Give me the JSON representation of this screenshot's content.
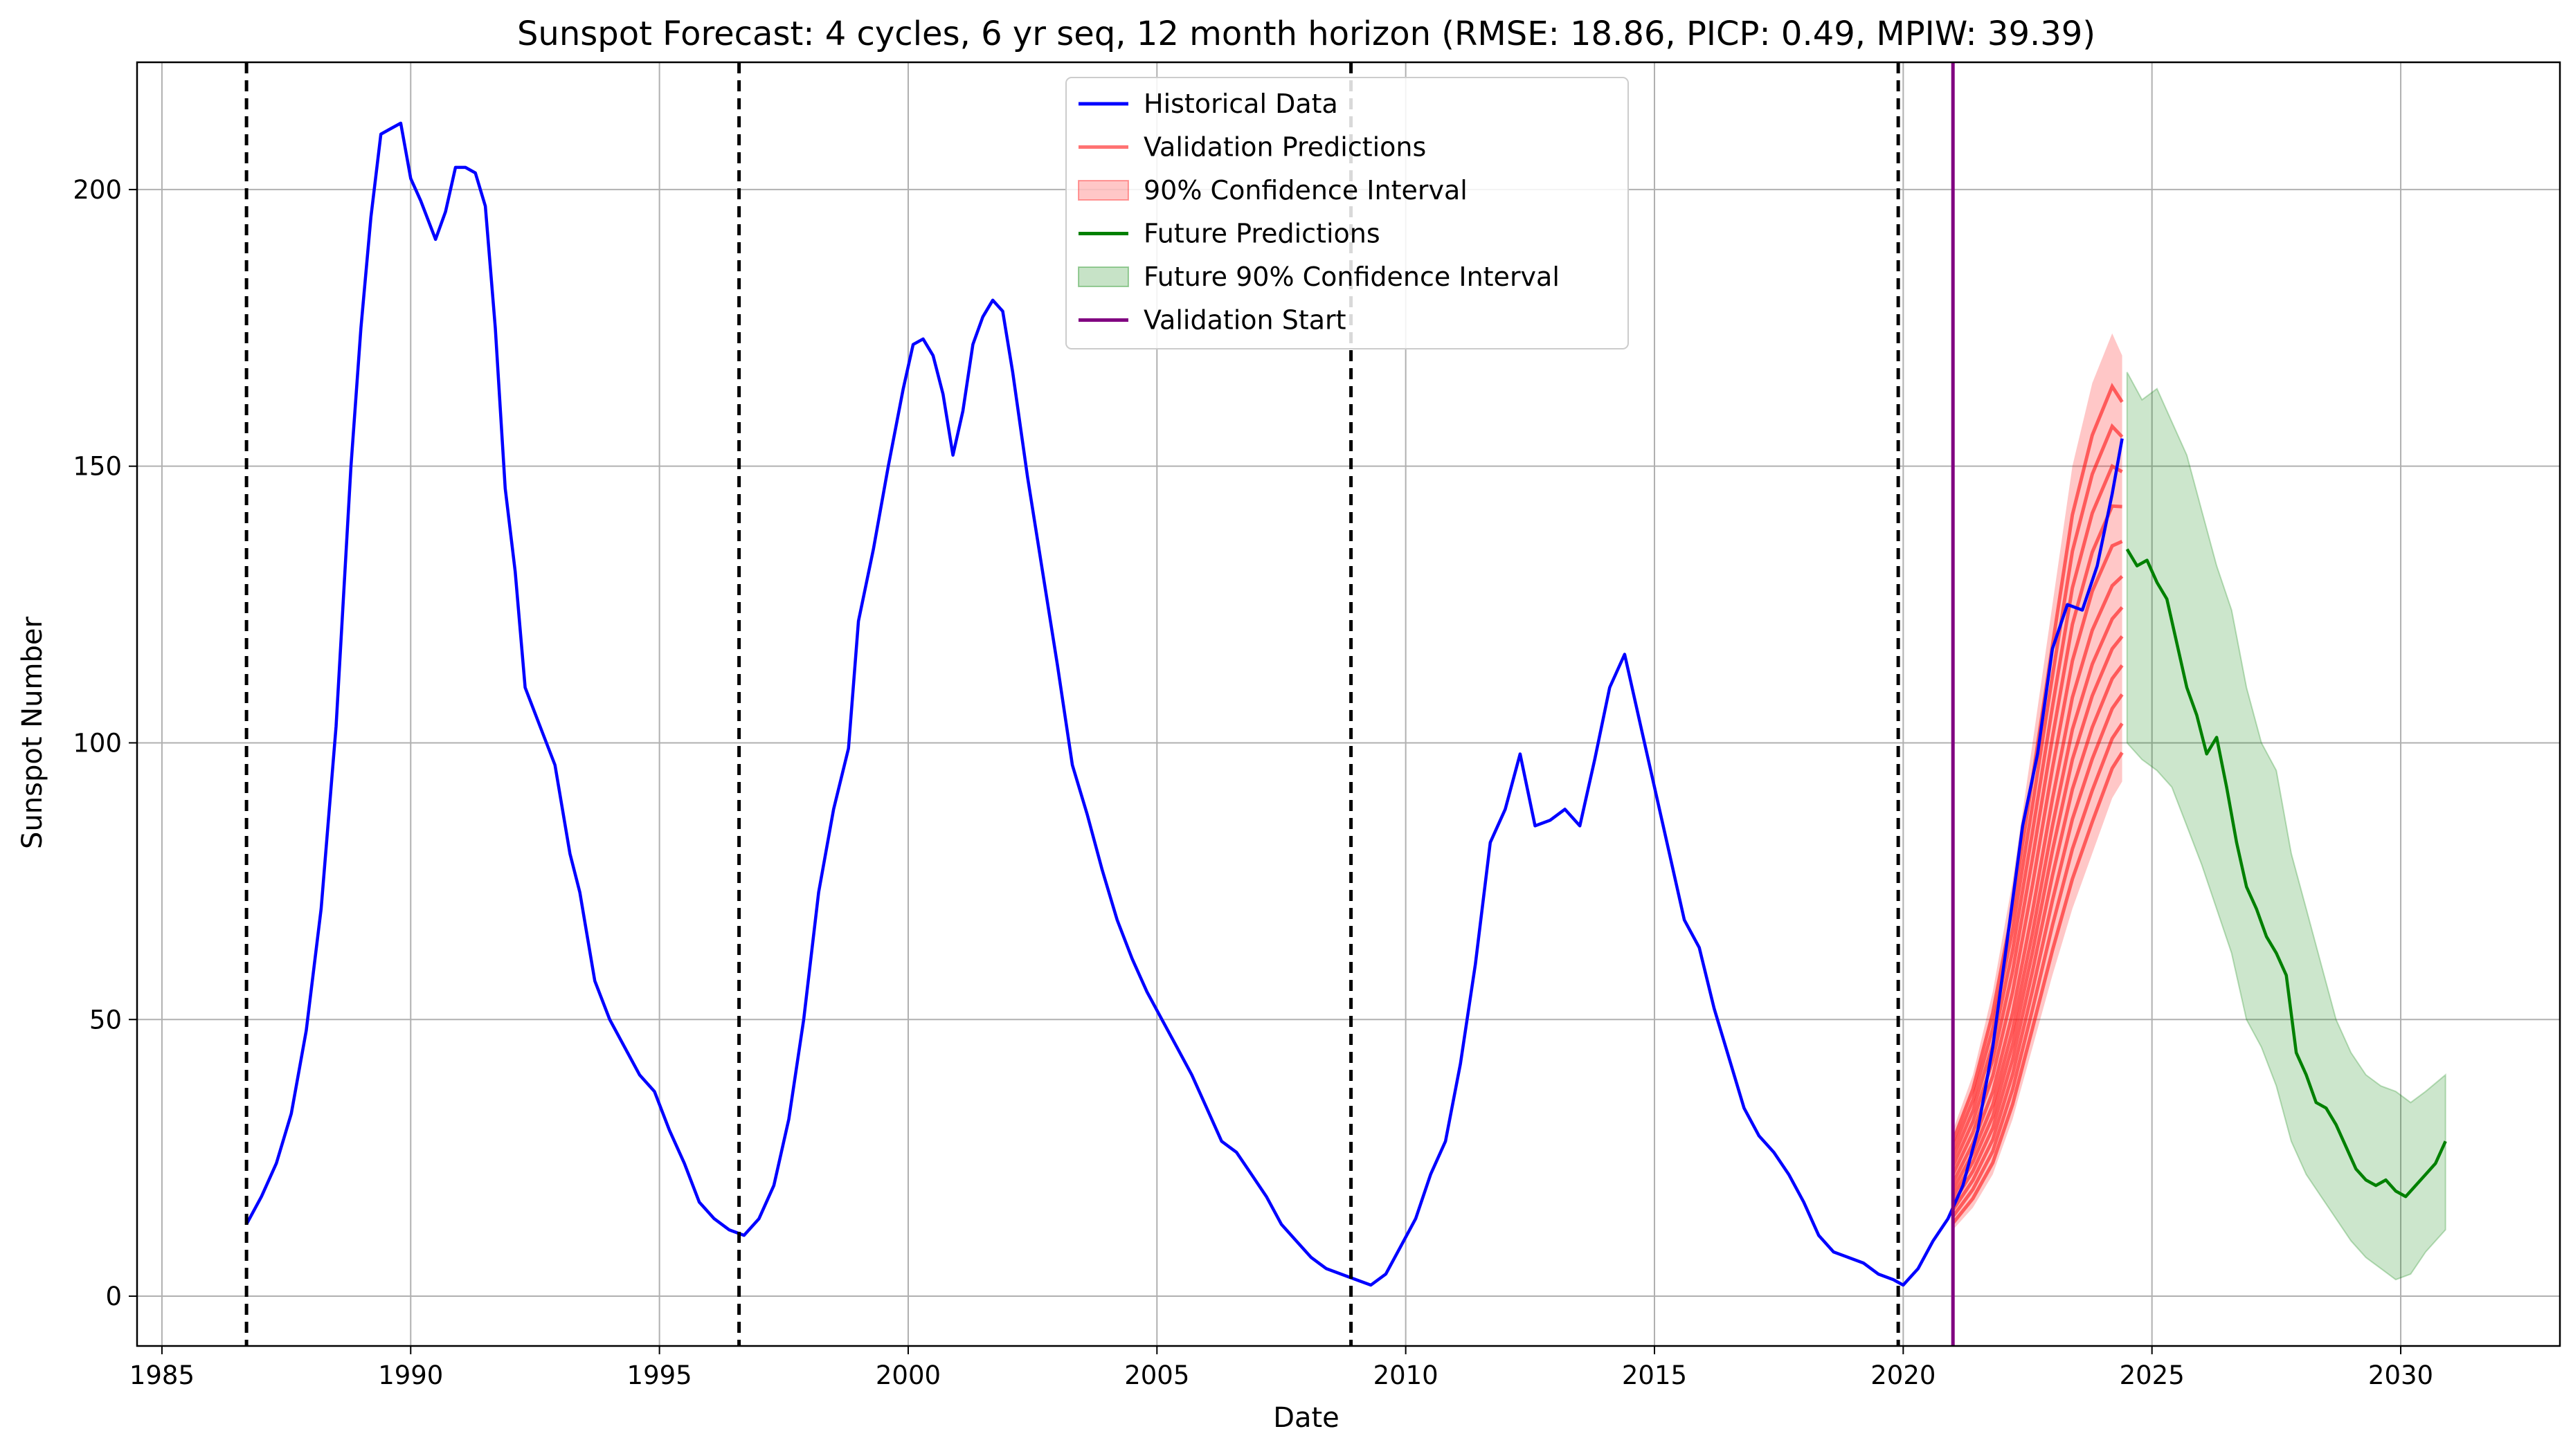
{
  "chart_data": {
    "type": "line",
    "title": "Sunspot Forecast: 4 cycles, 6 yr seq, 12 month horizon (RMSE: 18.86, PICP: 0.49, MPIW: 39.39)",
    "xlabel": "Date",
    "ylabel": "Sunspot Number",
    "xlim": [
      1984.5,
      2033.2
    ],
    "ylim": [
      -9,
      223
    ],
    "xticks": [
      1985,
      1990,
      1995,
      2000,
      2005,
      2010,
      2015,
      2020,
      2025,
      2030
    ],
    "yticks": [
      0,
      50,
      100,
      150,
      200
    ],
    "grid": true,
    "legend_position": "upper center",
    "legend": [
      {
        "label": "Historical Data",
        "color": "#0000ff",
        "kind": "line"
      },
      {
        "label": "Validation Predictions",
        "color": "#ff0000",
        "kind": "line-faded"
      },
      {
        "label": "90% Confidence Interval",
        "color": "#ff0000",
        "kind": "patch"
      },
      {
        "label": "Future Predictions",
        "color": "#008000",
        "kind": "line"
      },
      {
        "label": "Future 90% Confidence Interval",
        "color": "#008000",
        "kind": "patch"
      },
      {
        "label": "Validation Start",
        "color": "#800080",
        "kind": "line"
      }
    ],
    "cycle_boundaries": [
      1986.7,
      1996.6,
      2008.9,
      2019.9
    ],
    "validation_start": 2021.0,
    "series": [
      {
        "name": "Historical Data",
        "color": "#0000ff",
        "x": [
          1986.7,
          1987.0,
          1987.3,
          1987.6,
          1987.9,
          1988.2,
          1988.5,
          1988.8,
          1989.0,
          1989.2,
          1989.4,
          1989.6,
          1989.8,
          1990.0,
          1990.2,
          1990.5,
          1990.7,
          1990.9,
          1991.1,
          1991.3,
          1991.5,
          1991.7,
          1991.9,
          1992.1,
          1992.3,
          1992.6,
          1992.9,
          1993.2,
          1993.4,
          1993.7,
          1994.0,
          1994.3,
          1994.6,
          1994.9,
          1995.2,
          1995.5,
          1995.8,
          1996.1,
          1996.4,
          1996.7,
          1997.0,
          1997.3,
          1997.6,
          1997.9,
          1998.2,
          1998.5,
          1998.8,
          1999.0,
          1999.3,
          1999.6,
          1999.9,
          2000.1,
          2000.3,
          2000.5,
          2000.7,
          2000.9,
          2001.1,
          2001.3,
          2001.5,
          2001.7,
          2001.9,
          2002.1,
          2002.4,
          2002.7,
          2003.0,
          2003.3,
          2003.6,
          2003.9,
          2004.2,
          2004.5,
          2004.8,
          2005.1,
          2005.4,
          2005.7,
          2006.0,
          2006.3,
          2006.6,
          2006.9,
          2007.2,
          2007.5,
          2007.8,
          2008.1,
          2008.4,
          2008.7,
          2009.0,
          2009.3,
          2009.6,
          2009.9,
          2010.2,
          2010.5,
          2010.8,
          2011.1,
          2011.4,
          2011.7,
          2012.0,
          2012.3,
          2012.6,
          2012.9,
          2013.2,
          2013.5,
          2013.8,
          2014.1,
          2014.4,
          2014.7,
          2015.0,
          2015.3,
          2015.6,
          2015.9,
          2016.2,
          2016.5,
          2016.8,
          2017.1,
          2017.4,
          2017.7,
          2018.0,
          2018.3,
          2018.6,
          2018.9,
          2019.2,
          2019.5,
          2019.8,
          2020.0,
          2020.3,
          2020.6,
          2020.9,
          2021.2,
          2021.5,
          2021.8,
          2022.1,
          2022.4,
          2022.7,
          2023.0,
          2023.3,
          2023.6,
          2023.9,
          2024.2,
          2024.4
        ],
        "y": [
          13,
          18,
          24,
          33,
          48,
          70,
          103,
          150,
          175,
          195,
          210,
          211,
          212,
          202,
          198,
          191,
          196,
          204,
          204,
          203,
          197,
          175,
          146,
          131,
          110,
          103,
          96,
          80,
          73,
          57,
          50,
          45,
          40,
          37,
          30,
          24,
          17,
          14,
          12,
          11,
          14,
          20,
          32,
          50,
          73,
          88,
          99,
          122,
          135,
          150,
          164,
          172,
          173,
          170,
          163,
          152,
          160,
          172,
          177,
          180,
          178,
          167,
          148,
          131,
          114,
          96,
          87,
          77,
          68,
          61,
          55,
          50,
          45,
          40,
          34,
          28,
          26,
          22,
          18,
          13,
          10,
          7,
          5,
          4,
          3,
          2,
          4,
          9,
          14,
          22,
          28,
          42,
          60,
          82,
          88,
          98,
          85,
          86,
          88,
          85,
          97,
          110,
          116,
          104,
          92,
          80,
          68,
          63,
          52,
          43,
          34,
          29,
          26,
          22,
          17,
          11,
          8,
          7,
          6,
          4,
          3,
          2,
          5,
          10,
          14,
          20,
          30,
          45,
          65,
          85,
          98,
          117,
          125,
          124,
          132,
          145,
          155
        ]
      },
      {
        "name": "Future Predictions",
        "color": "#008000",
        "x": [
          2024.5,
          2024.7,
          2024.9,
          2025.1,
          2025.3,
          2025.5,
          2025.7,
          2025.9,
          2026.1,
          2026.3,
          2026.5,
          2026.7,
          2026.9,
          2027.1,
          2027.3,
          2027.5,
          2027.7,
          2027.9,
          2028.1,
          2028.3,
          2028.5,
          2028.7,
          2028.9,
          2029.1,
          2029.3,
          2029.5,
          2029.7,
          2029.9,
          2030.1,
          2030.3,
          2030.5,
          2030.7,
          2030.9
        ],
        "y": [
          135,
          132,
          133,
          129,
          126,
          118,
          110,
          105,
          98,
          101,
          92,
          82,
          74,
          70,
          65,
          62,
          58,
          44,
          40,
          35,
          34,
          31,
          27,
          23,
          21,
          20,
          21,
          19,
          18,
          20,
          22,
          24,
          28
        ]
      }
    ],
    "validation_band": {
      "name": "90% Confidence Interval",
      "x": [
        2021.0,
        2021.4,
        2021.8,
        2022.2,
        2022.6,
        2023.0,
        2023.4,
        2023.8,
        2024.2,
        2024.4
      ],
      "lower": [
        12,
        16,
        22,
        32,
        45,
        58,
        70,
        80,
        90,
        93
      ],
      "upper": [
        30,
        40,
        55,
        75,
        100,
        125,
        150,
        165,
        174,
        170
      ]
    },
    "validation_predictions": {
      "name": "Validation Predictions",
      "x": [
        2021.0,
        2021.4,
        2021.8,
        2022.2,
        2022.6,
        2023.0,
        2023.4,
        2023.8,
        2024.2,
        2024.4
      ],
      "center": [
        20,
        27,
        36,
        50,
        68,
        88,
        106,
        118,
        126,
        128
      ]
    },
    "future_band": {
      "name": "Future 90% Confidence Interval",
      "x": [
        2024.5,
        2024.8,
        2025.1,
        2025.4,
        2025.7,
        2026.0,
        2026.3,
        2026.6,
        2026.9,
        2027.2,
        2027.5,
        2027.8,
        2028.1,
        2028.4,
        2028.7,
        2029.0,
        2029.3,
        2029.6,
        2029.9,
        2030.2,
        2030.5,
        2030.9
      ],
      "lower": [
        100,
        97,
        95,
        92,
        85,
        78,
        70,
        62,
        50,
        45,
        38,
        28,
        22,
        18,
        14,
        10,
        7,
        5,
        3,
        4,
        8,
        12
      ],
      "upper": [
        167,
        162,
        164,
        158,
        152,
        142,
        132,
        124,
        110,
        100,
        95,
        80,
        70,
        60,
        50,
        44,
        40,
        38,
        37,
        35,
        37,
        40
      ]
    }
  }
}
